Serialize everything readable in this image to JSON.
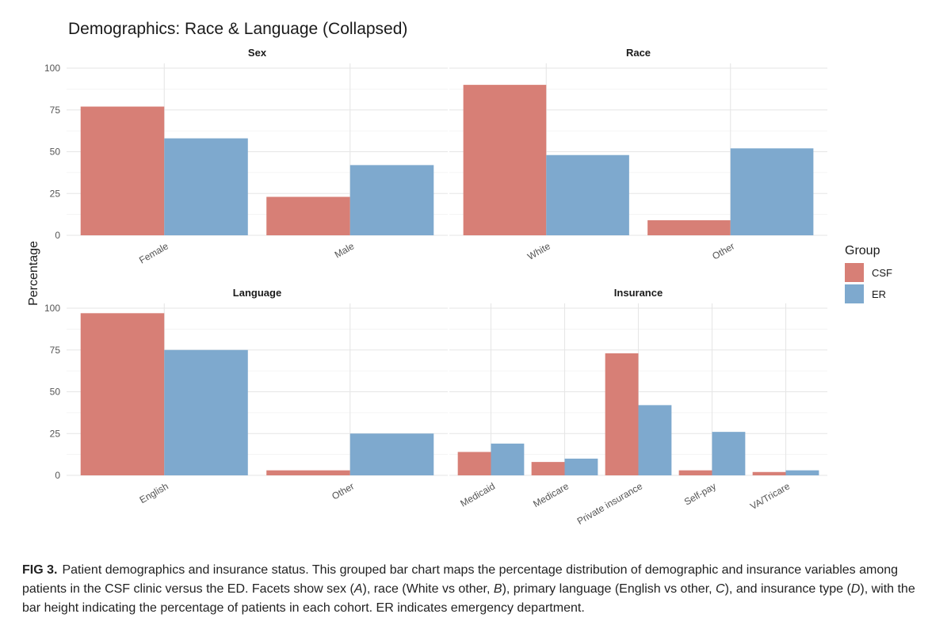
{
  "chart_data": {
    "type": "bar",
    "title": "Demographics: Race & Language (Collapsed)",
    "ylabel": "Percentage",
    "ylim": [
      0,
      100
    ],
    "yticks": [
      0,
      25,
      50,
      75,
      100
    ],
    "grid": true,
    "legend": {
      "title": "Group",
      "placement": "right",
      "entries": [
        {
          "name": "CSF",
          "color": "#D77F76"
        },
        {
          "name": "ER",
          "color": "#7EA9CE"
        }
      ]
    },
    "facets": [
      {
        "title": "Sex",
        "categories": [
          "Female",
          "Male"
        ],
        "series": [
          {
            "name": "CSF",
            "values": [
              77,
              23
            ]
          },
          {
            "name": "ER",
            "values": [
              58,
              42
            ]
          }
        ]
      },
      {
        "title": "Race",
        "categories": [
          "White",
          "Other"
        ],
        "series": [
          {
            "name": "CSF",
            "values": [
              90,
              9
            ]
          },
          {
            "name": "ER",
            "values": [
              48,
              52
            ]
          }
        ]
      },
      {
        "title": "Language",
        "categories": [
          "English",
          "Other"
        ],
        "series": [
          {
            "name": "CSF",
            "values": [
              97,
              3
            ]
          },
          {
            "name": "ER",
            "values": [
              75,
              25
            ]
          }
        ]
      },
      {
        "title": "Insurance",
        "categories": [
          "Medicaid",
          "Medicare",
          "Private insurance",
          "Self-pay",
          "VA/Tricare"
        ],
        "series": [
          {
            "name": "CSF",
            "values": [
              14,
              8,
              73,
              3,
              2
            ]
          },
          {
            "name": "ER",
            "values": [
              19,
              10,
              42,
              26,
              3
            ]
          }
        ]
      }
    ]
  },
  "caption": {
    "label": "FIG 3.",
    "parts": [
      {
        "t": "Patient demographics and insurance status. This grouped bar chart maps the percentage distribution of demographic and insurance variables among patients in the CSF clinic versus the ED. Facets show sex ("
      },
      {
        "t": "A",
        "i": true
      },
      {
        "t": "), race (White vs other, "
      },
      {
        "t": "B",
        "i": true
      },
      {
        "t": "), primary language (English vs other, "
      },
      {
        "t": "C",
        "i": true
      },
      {
        "t": "), and insurance type ("
      },
      {
        "t": "D",
        "i": true
      },
      {
        "t": "), with the bar height indicating the percentage of patients in each cohort. ER indicates emergency department."
      }
    ]
  }
}
